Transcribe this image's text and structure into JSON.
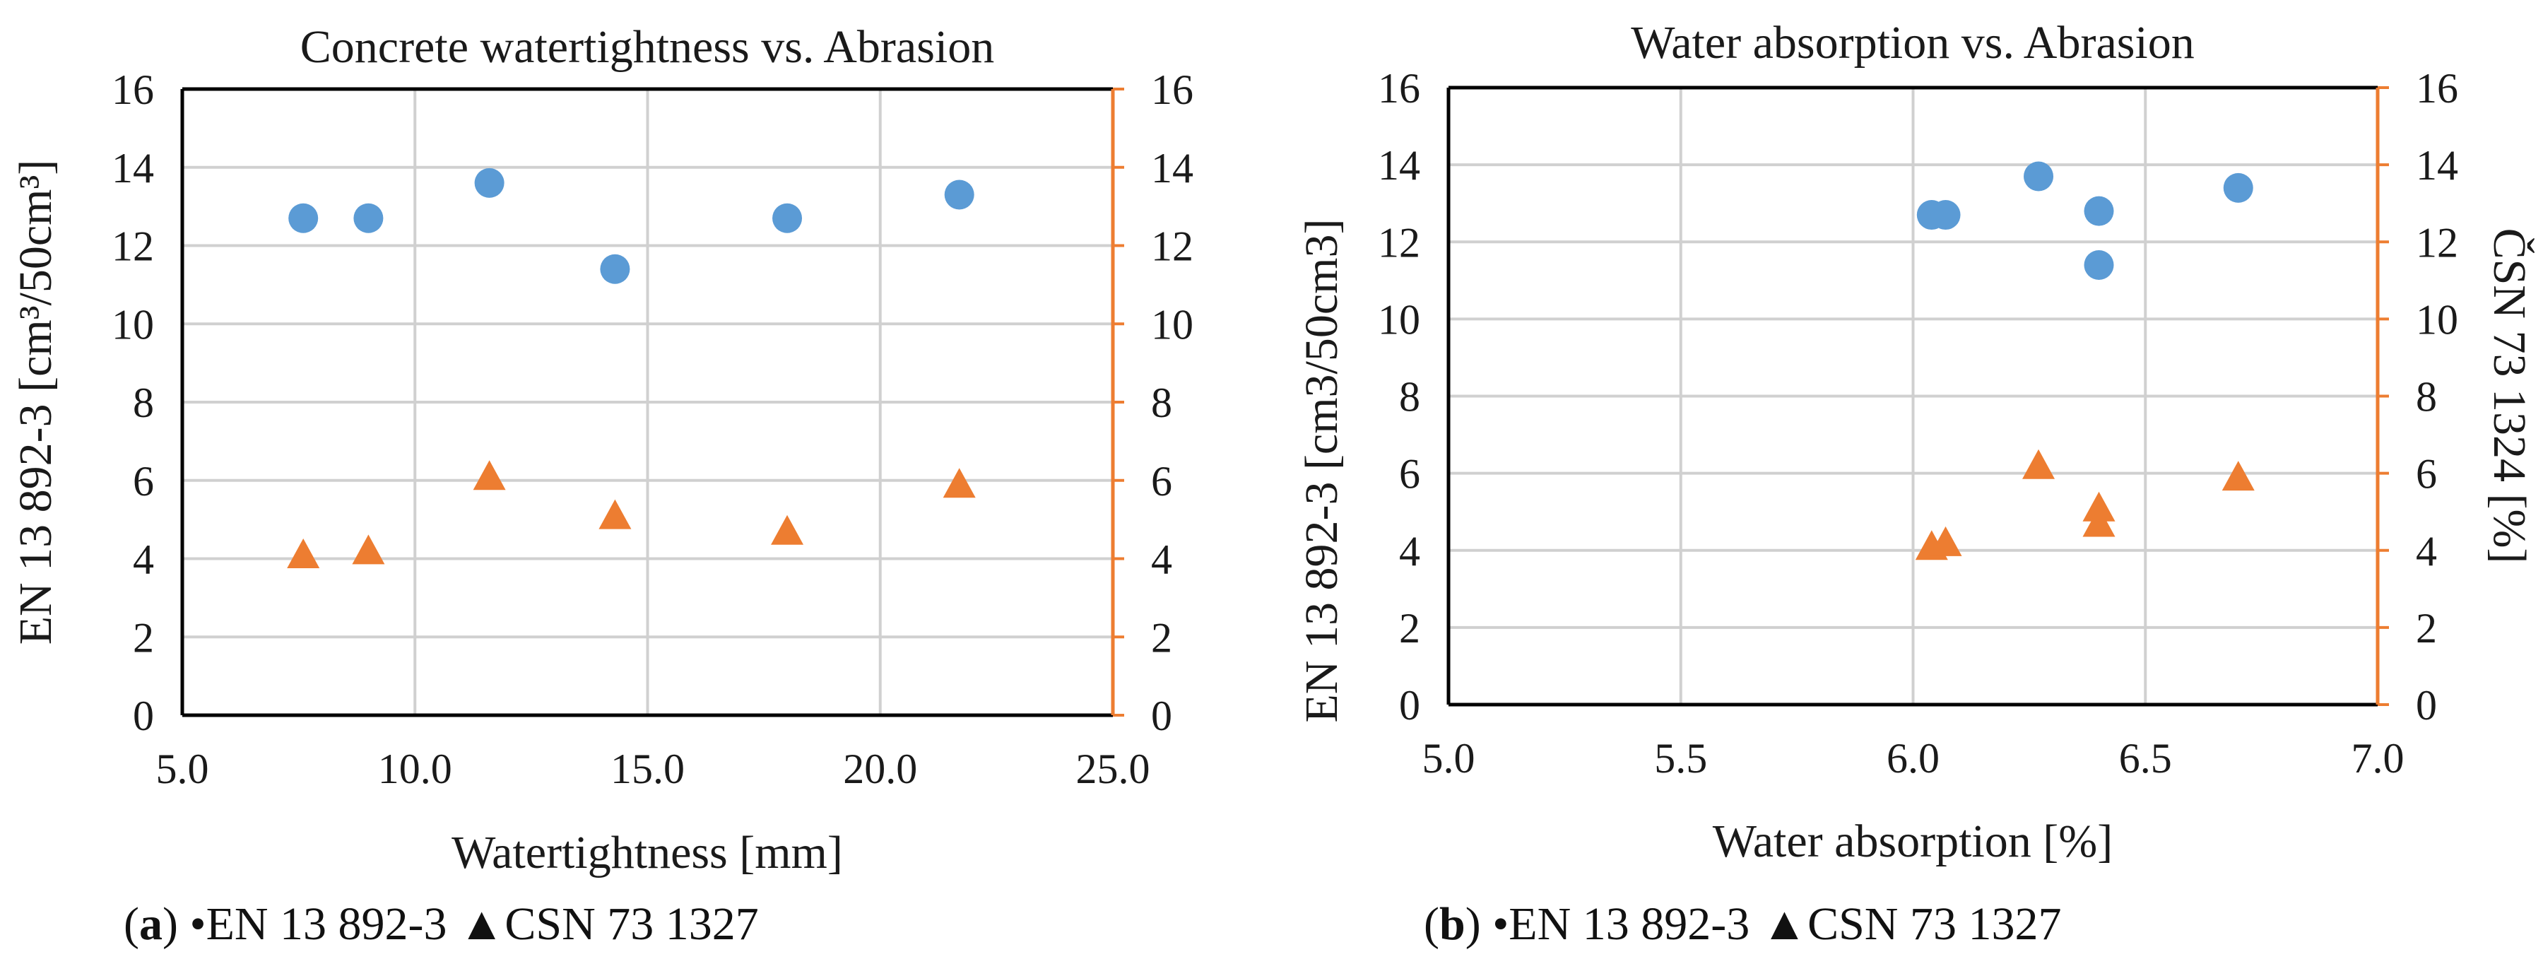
{
  "colors": {
    "series1": "#5b9bd5",
    "series2": "#ed7d31",
    "grid": "#d0d0d0",
    "axis": "#000000"
  },
  "captions": [
    {
      "label": "a",
      "text": " •EN 13 892-3 ▲CSN 73 1327"
    },
    {
      "label": "b",
      "text": " •EN 13 892-3 ▲CSN 73 1327"
    }
  ],
  "chart_data": [
    {
      "type": "scatter",
      "title": "Concrete watertightness vs. Abrasion",
      "xlabel": "Watertightness [mm]",
      "ylabel": "EN 13 892-3 [cm³/50cm³]",
      "y2label": "",
      "xlim": [
        5.0,
        25.0
      ],
      "ylim": [
        0,
        16
      ],
      "y2lim": [
        0,
        16
      ],
      "xticks": [
        "5.0",
        "10.0",
        "15.0",
        "20.0",
        "25.0"
      ],
      "yticks": [
        "0",
        "2",
        "4",
        "6",
        "8",
        "10",
        "12",
        "14",
        "16"
      ],
      "grid": true,
      "series": [
        {
          "name": "EN 13 892-3",
          "marker": "circle",
          "axis": "left",
          "x": [
            7.6,
            9.0,
            11.6,
            14.3,
            18.0,
            21.7
          ],
          "y": [
            12.7,
            12.7,
            13.6,
            11.4,
            12.7,
            13.3
          ]
        },
        {
          "name": "CSN 73 1327",
          "marker": "triangle",
          "axis": "right",
          "x": [
            7.6,
            9.0,
            11.6,
            14.3,
            18.0,
            21.7
          ],
          "y": [
            4.1,
            4.2,
            6.1,
            5.1,
            4.7,
            5.9
          ]
        }
      ]
    },
    {
      "type": "scatter",
      "title": "Water absorption vs. Abrasion",
      "xlabel": "Water absorption [%]",
      "ylabel": "EN 13 892-3 [cm3/50cm3]",
      "y2label": "ČSN 73 1324 [%]",
      "xlim": [
        5.0,
        7.0
      ],
      "ylim": [
        0,
        16
      ],
      "y2lim": [
        0,
        16
      ],
      "xticks": [
        "5.0",
        "5.5",
        "6.0",
        "6.5",
        "7.0"
      ],
      "yticks": [
        "0",
        "2",
        "4",
        "6",
        "8",
        "10",
        "12",
        "14",
        "16"
      ],
      "grid": true,
      "series": [
        {
          "name": "EN 13 892-3",
          "marker": "circle",
          "axis": "left",
          "x": [
            6.04,
            6.07,
            6.27,
            6.4,
            6.4,
            6.7
          ],
          "y": [
            12.7,
            12.7,
            13.7,
            12.8,
            11.4,
            13.4
          ]
        },
        {
          "name": "CSN 73 1327",
          "marker": "triangle",
          "axis": "right",
          "x": [
            6.04,
            6.07,
            6.27,
            6.4,
            6.4,
            6.7
          ],
          "y": [
            4.1,
            4.2,
            6.2,
            5.1,
            4.7,
            5.9
          ]
        }
      ]
    }
  ]
}
